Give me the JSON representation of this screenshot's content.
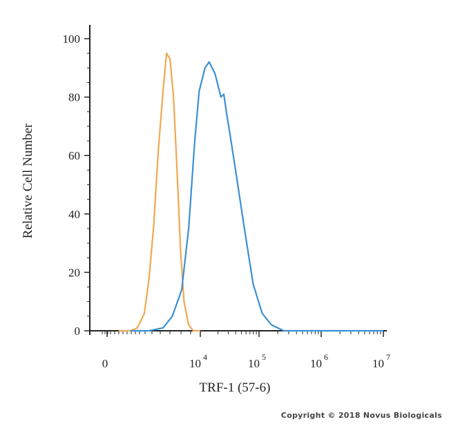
{
  "chart_data": {
    "type": "line",
    "title": "",
    "xlabel": "TRF-1 (57-6)",
    "ylabel": "Relative Cell Number",
    "ylim": [
      0,
      100
    ],
    "y_ticks": [
      "0",
      "20",
      "40",
      "60",
      "80",
      "100"
    ],
    "x_ticks": [
      {
        "base": "0",
        "exp": ""
      },
      {
        "base": "10",
        "exp": "4"
      },
      {
        "base": "10",
        "exp": "5"
      },
      {
        "base": "10",
        "exp": "6"
      },
      {
        "base": "10",
        "exp": "7"
      }
    ],
    "x_scale": "biexponential (log10 above 10^4)",
    "grid": false,
    "legend": "none",
    "series": [
      {
        "color": "#f0a850",
        "x": [
          0.5,
          1.0,
          1.3,
          1.6,
          1.8,
          2.0,
          2.2,
          2.4,
          2.55,
          2.7,
          2.85,
          3.0,
          3.15,
          3.3,
          3.5,
          3.7,
          4.0
        ],
        "y": [
          0,
          0,
          1,
          6,
          18,
          36,
          62,
          82,
          95,
          93,
          80,
          55,
          28,
          10,
          2,
          0,
          0
        ]
      },
      {
        "color": "#3b8fd4",
        "x": [
          1.0,
          1.8,
          2.4,
          2.8,
          3.2,
          3.5,
          3.75,
          3.95,
          4.08,
          4.15,
          4.25,
          4.35,
          4.4,
          4.45,
          4.5,
          4.6,
          4.75,
          4.9,
          5.05,
          5.2,
          5.4,
          6.0,
          7.0
        ],
        "y": [
          0,
          0,
          1,
          5,
          14,
          35,
          64,
          82,
          90,
          92,
          88,
          80,
          81,
          74,
          68,
          55,
          35,
          16,
          6,
          2,
          0,
          0,
          0
        ]
      }
    ]
  },
  "copyright": "Copyright © 2018 Novus Biologicals"
}
